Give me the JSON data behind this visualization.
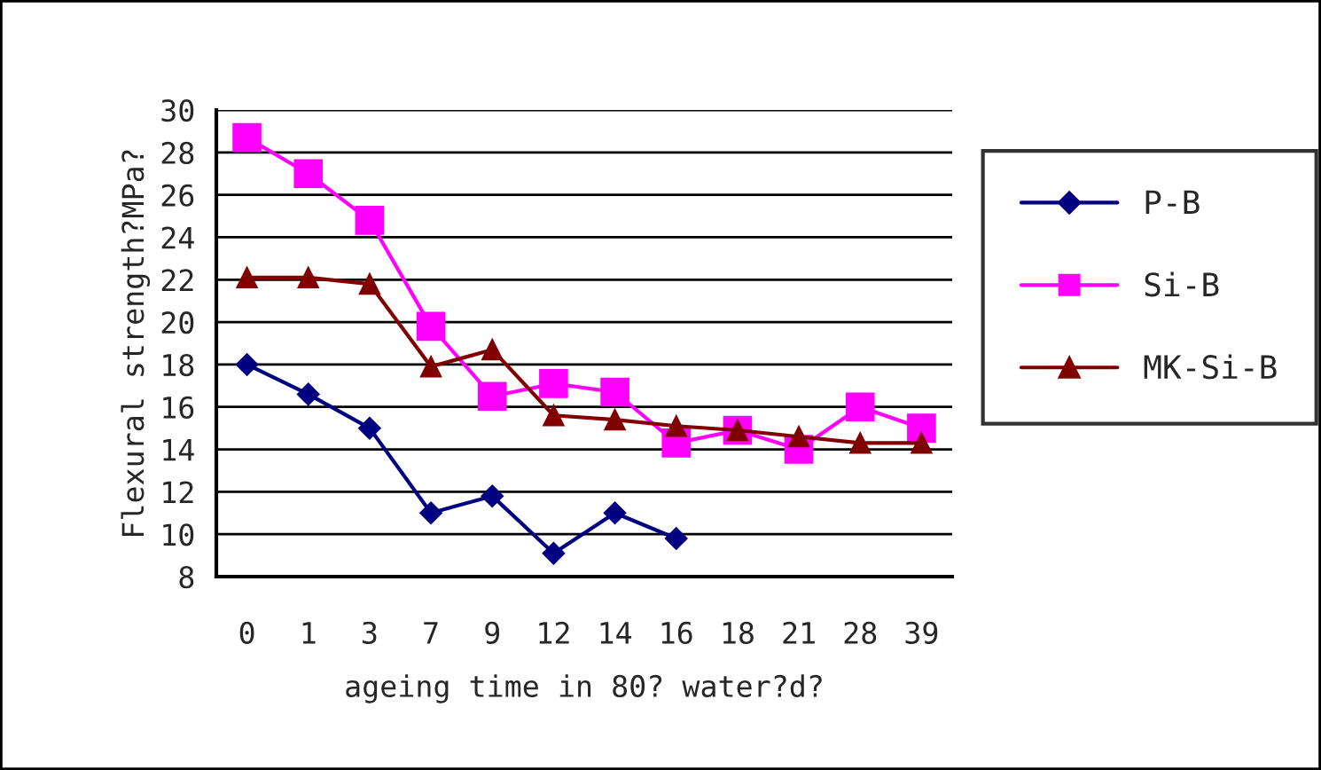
{
  "chart_data": {
    "type": "line",
    "xlabel": "ageing time in 80? water?d?",
    "ylabel": "Flexural strength?MPa?",
    "categories": [
      "0",
      "1",
      "3",
      "7",
      "9",
      "12",
      "14",
      "16",
      "18",
      "21",
      "28",
      "39"
    ],
    "series": [
      {
        "name": "P-B",
        "color": "#000080",
        "marker": "diamond",
        "values": [
          18.0,
          16.6,
          15.0,
          11.0,
          11.8,
          9.1,
          11.0,
          9.8,
          null,
          null,
          null,
          null
        ]
      },
      {
        "name": "Si-B",
        "color": "#ff00ff",
        "marker": "square",
        "values": [
          28.7,
          27.0,
          24.8,
          19.8,
          16.5,
          17.1,
          16.7,
          14.3,
          14.9,
          14.0,
          16.0,
          15.0
        ]
      },
      {
        "name": "MK-Si-B",
        "color": "#800000",
        "marker": "triangle",
        "values": [
          22.1,
          22.1,
          21.8,
          17.9,
          18.7,
          15.6,
          15.4,
          15.1,
          14.9,
          14.6,
          14.3,
          14.3
        ]
      }
    ],
    "ylim": [
      8,
      30
    ],
    "yticks": [
      8,
      10,
      12,
      14,
      16,
      18,
      20,
      22,
      24,
      26,
      28,
      30
    ],
    "grid": "y",
    "legend": "right",
    "line_style": "solid"
  }
}
